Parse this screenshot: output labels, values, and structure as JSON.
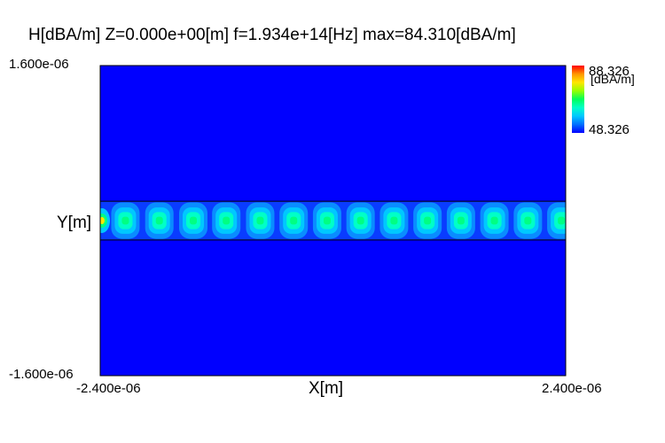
{
  "chart_data": {
    "type": "heatmap",
    "title": "H[dBA/m] Z=0.000e+00[m] f=1.934e+14[Hz] max=84.310[dBA/m]",
    "xlabel": "X[m]",
    "ylabel": "Y[m]",
    "x_ticks": [
      "-2.400e-06",
      "2.400e-06"
    ],
    "y_ticks": [
      "1.600e-06",
      "-1.600e-06"
    ],
    "xlim": [
      -2.4e-06,
      2.4e-06
    ],
    "ylim": [
      -1.6e-06,
      1.6e-06
    ],
    "colorbar": {
      "max_label": "88.326",
      "min_label": "48.326",
      "unit": "[dBA/m]",
      "range": [
        48.326,
        88.326
      ],
      "position": "right",
      "colors": [
        "#0000ff",
        "#0070ff",
        "#00c8ff",
        "#00ffc8",
        "#00ff5a",
        "#96ff00",
        "#ffe600",
        "#ff9600",
        "#ff0000"
      ]
    },
    "colors": {
      "background_field": "#0000ff",
      "waveguide_core": "#0a3cff",
      "mode_outer": "#0a8cff",
      "mode_mid": "#00c8ff",
      "mode_inner": "#00ffc8",
      "mode_peak": "#00ff82",
      "source_peak": "#ffe600",
      "frame": "#000000"
    },
    "waveguide": {
      "y_range": [
        -2e-07,
        2e-07
      ],
      "mode_count": 14,
      "mode_centers_x": [
        -2.14e-06,
        -1.79e-06,
        -1.44e-06,
        -1.1e-06,
        -7.5e-07,
        -4.05e-07,
        -6e-08,
        2.85e-07,
        6.3e-07,
        9.75e-07,
        1.32e-06,
        1.665e-06,
        2.01e-06,
        2.355e-06
      ],
      "source_x": -2.4e-06
    }
  }
}
